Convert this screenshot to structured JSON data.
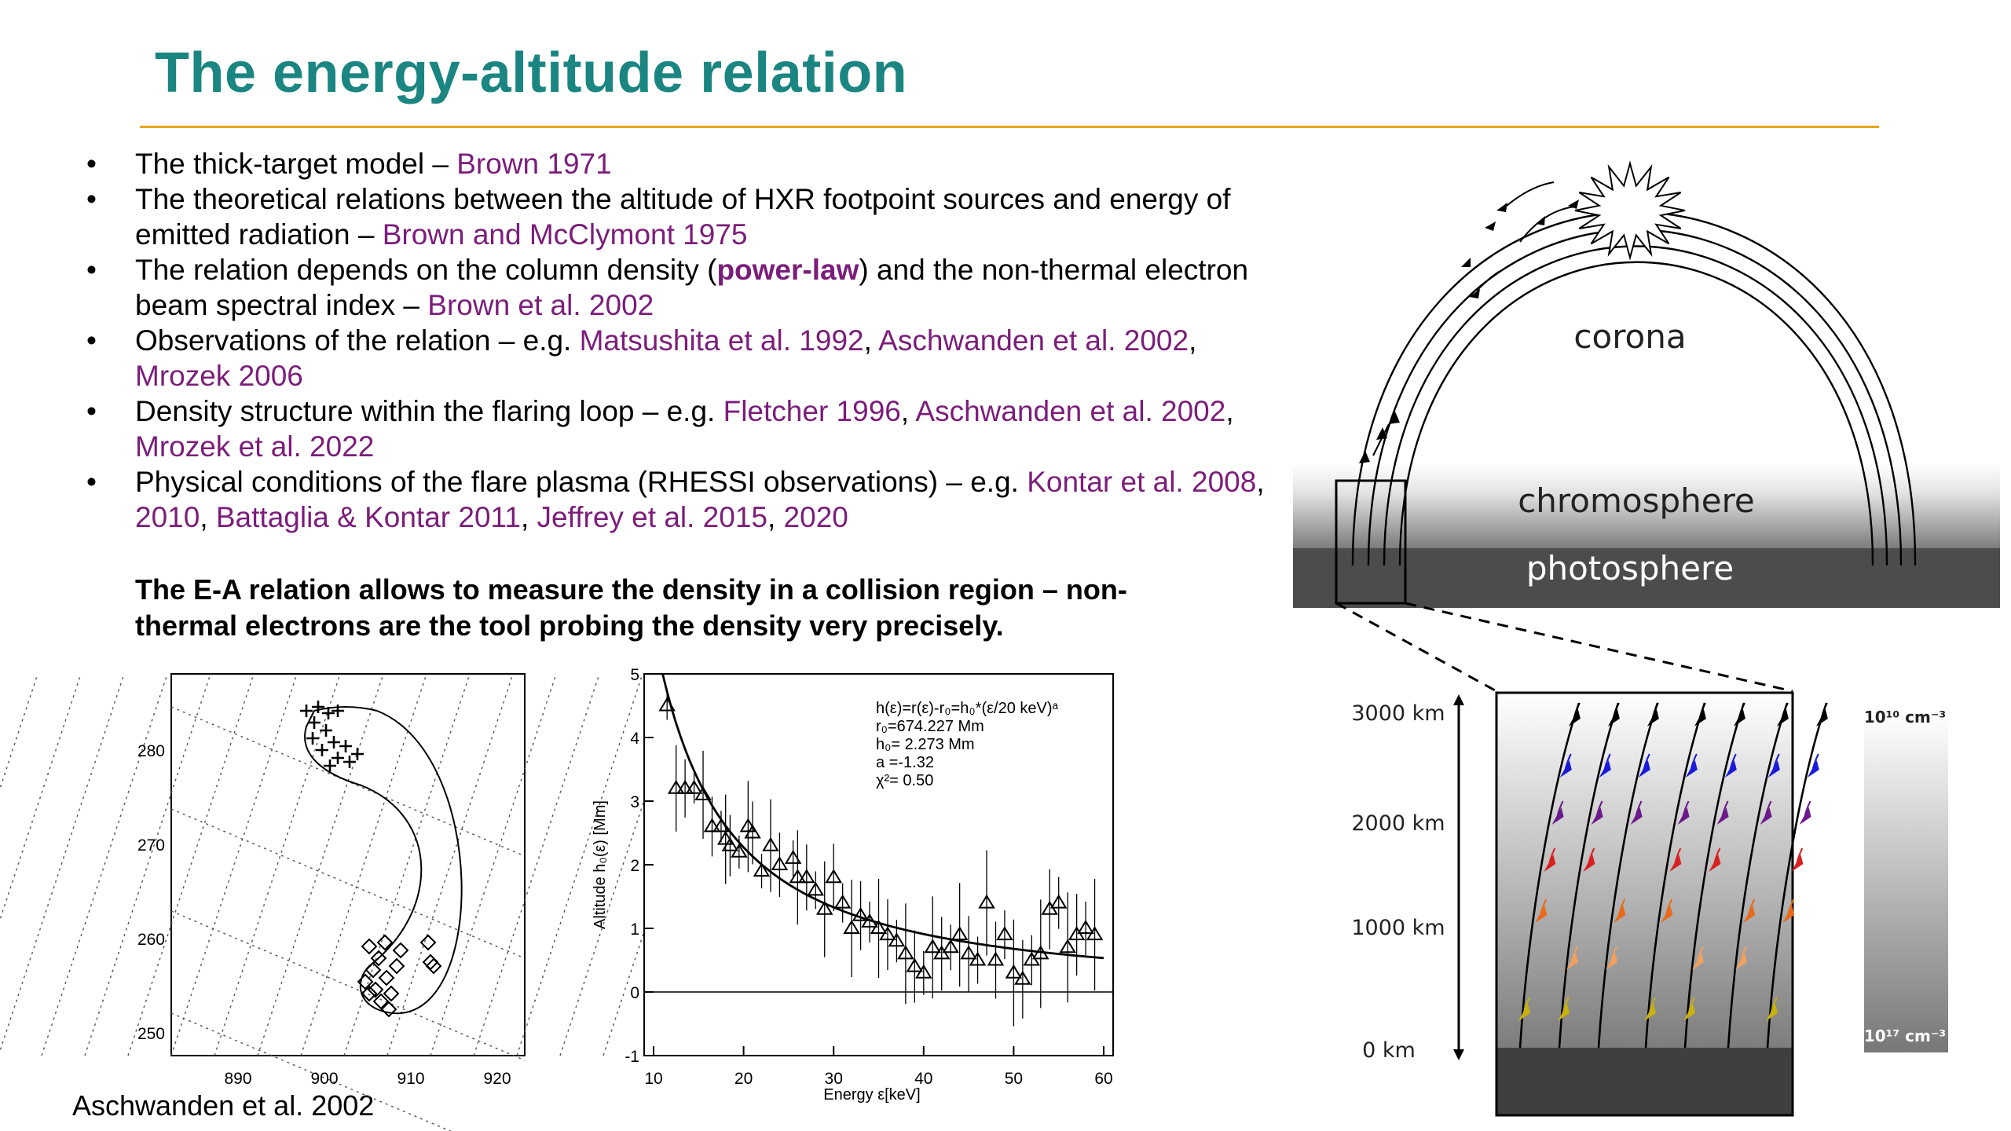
{
  "title": "The energy-altitude relation",
  "bullets": [
    {
      "segments": [
        {
          "t": "The thick-target model – ",
          "c": "n"
        },
        {
          "t": "Brown 1971",
          "c": "r"
        }
      ]
    },
    {
      "segments": [
        {
          "t": "The theoretical relations between the altitude of HXR footpoint sources and energy of emitted radiation – ",
          "c": "n"
        },
        {
          "t": "Brown and McClymont 1975",
          "c": "r"
        }
      ]
    },
    {
      "segments": [
        {
          "t": "The relation depends on the column density (",
          "c": "n"
        },
        {
          "t": "power-law",
          "c": "rb"
        },
        {
          "t": ") and the non-thermal electron beam spectral index – ",
          "c": "n"
        },
        {
          "t": "Brown et al. 2002",
          "c": "r"
        }
      ]
    },
    {
      "segments": [
        {
          "t": "Observations of the relation – e.g. ",
          "c": "n"
        },
        {
          "t": "Matsushita et al. 1992",
          "c": "r"
        },
        {
          "t": ", ",
          "c": "n"
        },
        {
          "t": "Aschwanden et al. 2002",
          "c": "r"
        },
        {
          "t": ", ",
          "c": "n"
        },
        {
          "t": "Mrozek 2006",
          "c": "r"
        }
      ]
    },
    {
      "segments": [
        {
          "t": "Density structure within the flaring loop – e.g. ",
          "c": "n"
        },
        {
          "t": "Fletcher 1996",
          "c": "r"
        },
        {
          "t": ", ",
          "c": "n"
        },
        {
          "t": "Aschwanden et al. 2002",
          "c": "r"
        },
        {
          "t": ", ",
          "c": "n"
        },
        {
          "t": "Mrozek et al. 2022",
          "c": "r"
        }
      ]
    },
    {
      "segments": [
        {
          "t": "Physical conditions of the flare plasma (RHESSI observations) – e.g. ",
          "c": "n"
        },
        {
          "t": "Kontar et al. 2008",
          "c": "r"
        },
        {
          "t": ", ",
          "c": "n"
        },
        {
          "t": "2010",
          "c": "r"
        },
        {
          "t": ", ",
          "c": "n"
        },
        {
          "t": "Battaglia & Kontar 2011",
          "c": "r"
        },
        {
          "t": ", ",
          "c": "n"
        },
        {
          "t": "Jeffrey et al. 2015",
          "c": "r"
        },
        {
          "t": ", ",
          "c": "n"
        },
        {
          "t": "2020",
          "c": "r"
        }
      ]
    }
  ],
  "conclusion": "The E-A relation allows to measure the density in a collision region – non-thermal electrons are the tool probing the density very precisely.",
  "caption": "Aschwanden et al. 2002",
  "colors": {
    "title": "#1a8581",
    "rule": "#e8a81a",
    "reference": "#7b1d7a"
  },
  "map_plot": {
    "x_ticks": [
      "890",
      "900",
      "910",
      "920"
    ],
    "y_ticks": [
      "280",
      "270",
      "260",
      "250"
    ]
  },
  "chart_data": {
    "type": "scatter",
    "title": "",
    "xlabel": "Energy  ε[keV]",
    "ylabel": "Altitude  h₀(ε) [Mm]",
    "xlim": [
      10,
      60
    ],
    "ylim": [
      -1,
      5
    ],
    "x_ticks": [
      "10",
      "20",
      "30",
      "40",
      "50",
      "60"
    ],
    "y_ticks": [
      "5",
      "4",
      "3",
      "2",
      "1",
      "0",
      "-1"
    ],
    "annotation": [
      "h(ε)=r(ε)-r₀=h₀*(ε/20 keV)ᵃ",
      "r₀=674.227 Mm",
      "h₀= 2.273 Mm",
      "a =-1.32",
      "χ²= 0.50"
    ],
    "series": [
      {
        "points": [
          [
            11.5,
            4.5
          ],
          [
            12.5,
            3.2
          ],
          [
            13.5,
            3.2
          ],
          [
            14.5,
            3.2
          ],
          [
            15.5,
            3.1
          ],
          [
            16.5,
            2.6
          ],
          [
            17.5,
            2.6
          ],
          [
            18,
            2.4
          ],
          [
            18.5,
            2.3
          ],
          [
            19.5,
            2.2
          ],
          [
            20.5,
            2.6
          ],
          [
            21,
            2.5
          ],
          [
            22,
            1.9
          ],
          [
            23,
            2.3
          ],
          [
            24,
            2.0
          ],
          [
            25.5,
            2.1
          ],
          [
            26,
            1.8
          ],
          [
            27,
            1.8
          ],
          [
            28,
            1.6
          ],
          [
            29,
            1.3
          ],
          [
            30,
            1.8
          ],
          [
            31,
            1.4
          ],
          [
            32,
            1.0
          ],
          [
            33,
            1.2
          ],
          [
            34,
            1.1
          ],
          [
            35,
            1.0
          ],
          [
            36,
            0.9
          ],
          [
            37,
            0.8
          ],
          [
            38,
            0.6
          ],
          [
            39,
            0.4
          ],
          [
            40,
            0.3
          ],
          [
            41,
            0.7
          ],
          [
            42,
            0.6
          ],
          [
            43,
            0.7
          ],
          [
            44,
            0.9
          ],
          [
            45,
            0.6
          ],
          [
            46,
            0.5
          ],
          [
            47,
            1.4
          ],
          [
            48,
            0.5
          ],
          [
            49,
            0.9
          ],
          [
            50,
            0.3
          ],
          [
            51,
            0.2
          ],
          [
            52,
            0.5
          ],
          [
            53,
            0.6
          ],
          [
            54,
            1.3
          ],
          [
            55,
            1.4
          ],
          [
            56,
            0.7
          ],
          [
            57,
            0.9
          ],
          [
            58,
            1.0
          ],
          [
            59,
            0.9
          ]
        ]
      }
    ]
  },
  "diagram": {
    "loop_labels": [
      "corona",
      "chromosphere",
      "photosphere"
    ],
    "altitude_labels": [
      "3000 km",
      "2000 km",
      "1000 km",
      "0 km"
    ],
    "density_top": "10¹⁰ cm⁻³",
    "density_bottom": "10¹⁷ cm⁻³"
  }
}
